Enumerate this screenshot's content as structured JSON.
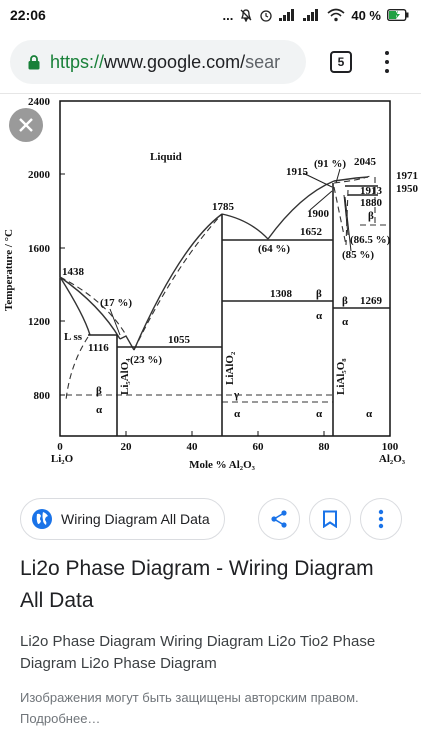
{
  "status_bar": {
    "time": "22:06",
    "dots": "...",
    "battery": "40 %"
  },
  "browser": {
    "url_scheme": "https://",
    "url_host": "www.google.com/",
    "url_rest": "sear",
    "tab_count": "5"
  },
  "diagram": {
    "y_axis_title": "Temperature / °C",
    "x_axis_title": "Mole % Al₂O₃",
    "y_ticks": [
      "2400",
      "2000",
      "1600",
      "1200",
      "800"
    ],
    "x_ticks": [
      "0",
      "20",
      "40",
      "60",
      "80",
      "100"
    ],
    "x_end_left": "Li₂O",
    "x_end_right": "Al₂O₃",
    "region_liquid": "Liquid",
    "labels": {
      "t1438": "1438",
      "t17": "(17 %)",
      "lss": "L ss",
      "t1116": "1116",
      "t23": "(23 %)",
      "t1055": "1055",
      "t1785": "1785",
      "t64": "(64 %)",
      "t1652": "1652",
      "t1308": "1308",
      "beta1": "β",
      "alpha1": "α",
      "gamma": "γ",
      "alpha2": "α",
      "beta2": "β",
      "alpha3": "α",
      "t1915": "1915",
      "t91": "(91 %)",
      "t2045": "2045",
      "t1971": "1971",
      "t1950": "1950",
      "t1913": "1913",
      "t1880": "1880",
      "t1900": "1900",
      "t865": "(86.5 %)",
      "t85": "(85 %)",
      "beta3": "β",
      "t1269": "1269",
      "beta4": "β",
      "alpha4": "α",
      "alpha5": "α",
      "alpha6": "α",
      "phase_li5": "Li₅AlO₄",
      "phase_lialo2": "LiAlO₂",
      "phase_lial5": "LiAl₅O₈"
    }
  },
  "result": {
    "source_name": "Wiring Diagram All Data",
    "title": "Li2o Phase Diagram - Wiring Diagram All Data",
    "description": "Li2o Phase Diagram Wiring Diagram Li2o Tio2 Phase Diagram Li2o Phase Diagram",
    "copyright": "Изображения могут быть защищены авторским правом. Подробнее…"
  },
  "icons": [
    "lock-icon",
    "close-icon",
    "globe-icon",
    "share-icon",
    "bookmark-icon",
    "more-vert-icon"
  ]
}
